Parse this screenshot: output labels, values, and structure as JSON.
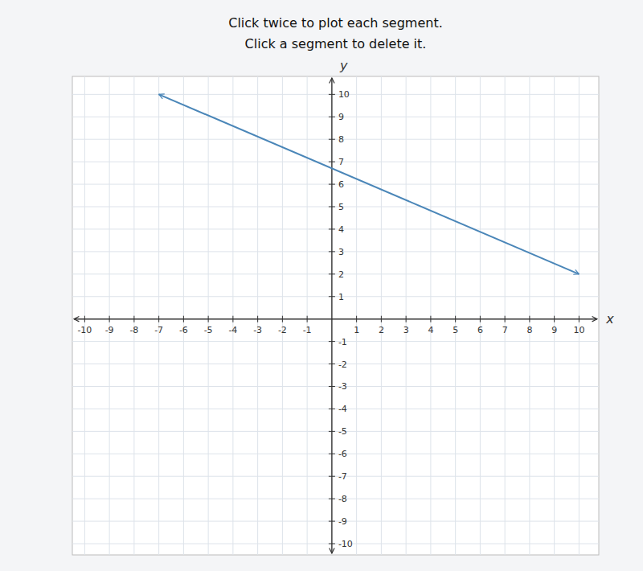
{
  "chart_data": {
    "type": "line",
    "title": "Click twice to plot each segment.",
    "subtitle": "Click a segment to delete it.",
    "x": [
      -7,
      10
    ],
    "values": [
      10,
      2
    ],
    "color": "#4a86b8",
    "marker": "arrow",
    "xlim": [
      -10.5,
      10.8
    ],
    "ylim": [
      -10.5,
      10.8
    ],
    "xticks": [
      -10,
      -9,
      -8,
      -7,
      -6,
      -5,
      -4,
      -3,
      -2,
      -1,
      1,
      2,
      3,
      4,
      5,
      6,
      7,
      8,
      9,
      10
    ],
    "yticks": [
      -10,
      -9,
      -8,
      -7,
      -6,
      -5,
      -4,
      -3,
      -2,
      -1,
      1,
      2,
      3,
      4,
      5,
      6,
      7,
      8,
      9,
      10
    ],
    "xlabel": "x",
    "ylabel": "y",
    "grid": true
  }
}
